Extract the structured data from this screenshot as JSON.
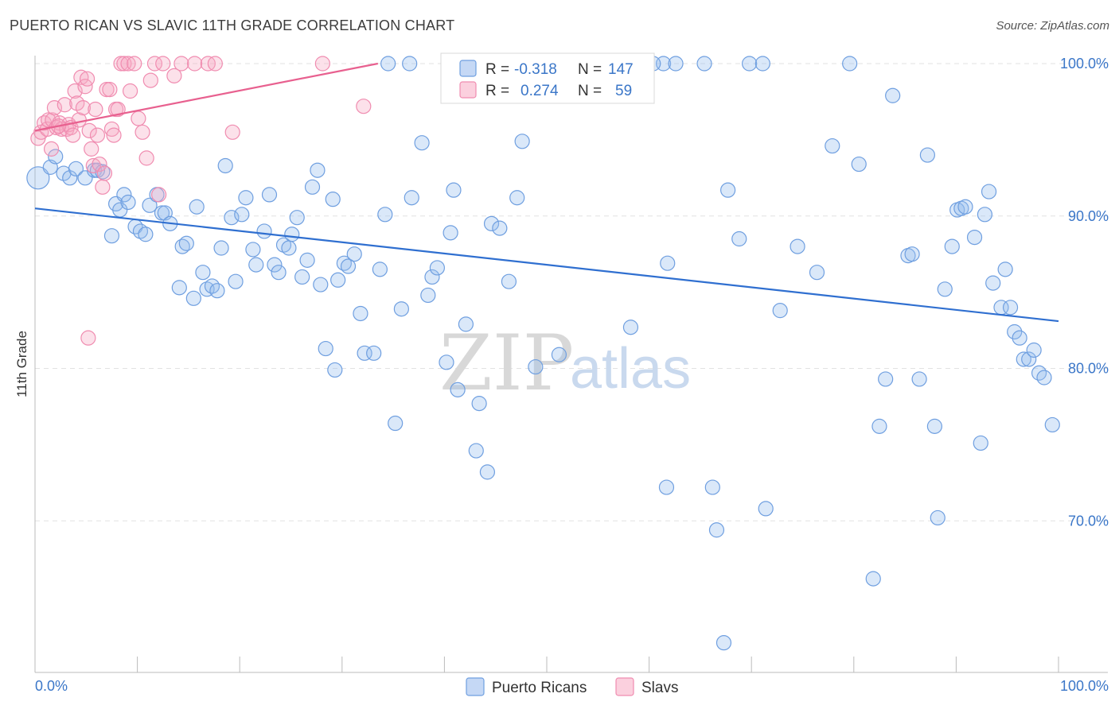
{
  "title": "PUERTO RICAN VS SLAVIC 11TH GRADE CORRELATION CHART",
  "source": "Source: ZipAtlas.com",
  "watermark": {
    "zip": "ZIP",
    "atlas": "atlas"
  },
  "legend": {
    "rows": [
      {
        "r_label": "R =",
        "r_value": "-0.318",
        "n_label": "N =",
        "n_value": "147",
        "color": "#6f9fe0"
      },
      {
        "r_label": "R =",
        "r_value": "0.274",
        "n_label": "N =",
        "n_value": "59",
        "color": "#f08cb0"
      }
    ]
  },
  "bottom_legend": [
    {
      "label": "Puerto Ricans",
      "color": "#6f9fe0"
    },
    {
      "label": "Slavs",
      "color": "#f08cb0"
    }
  ],
  "chart_data": {
    "type": "scatter",
    "title": "PUERTO RICAN VS SLAVIC 11TH GRADE CORRELATION CHART",
    "xlabel": "",
    "ylabel": "11th Grade",
    "xlim": [
      0,
      100
    ],
    "ylim": [
      60,
      100
    ],
    "x_tick_labels": [
      "0.0%",
      "100.0%"
    ],
    "y_tick_labels": [
      "100.0%",
      "90.0%",
      "80.0%",
      "70.0%"
    ],
    "y_ticks": [
      100,
      90,
      80,
      70
    ],
    "grid": true,
    "legend_position": "top-center",
    "series": [
      {
        "name": "Puerto Ricans",
        "color": "#6f9fe0",
        "trend": {
          "x": [
            0,
            100
          ],
          "y": [
            90.5,
            83.1
          ]
        },
        "points": [
          [
            0.3,
            92.5
          ],
          [
            1.5,
            93.2
          ],
          [
            2.0,
            93.9
          ],
          [
            2.8,
            92.8
          ],
          [
            3.4,
            92.5
          ],
          [
            4.0,
            93.1
          ],
          [
            4.9,
            92.5
          ],
          [
            5.8,
            93.0
          ],
          [
            6.1,
            93.0
          ],
          [
            6.6,
            92.9
          ],
          [
            7.5,
            88.7
          ],
          [
            7.9,
            90.8
          ],
          [
            8.3,
            90.4
          ],
          [
            8.7,
            91.4
          ],
          [
            9.1,
            90.9
          ],
          [
            9.8,
            89.3
          ],
          [
            10.3,
            89.0
          ],
          [
            10.8,
            88.8
          ],
          [
            11.2,
            90.7
          ],
          [
            11.9,
            91.4
          ],
          [
            12.4,
            90.2
          ],
          [
            12.7,
            90.2
          ],
          [
            13.2,
            89.5
          ],
          [
            14.1,
            85.3
          ],
          [
            14.4,
            88.0
          ],
          [
            14.8,
            88.2
          ],
          [
            15.5,
            84.6
          ],
          [
            15.8,
            90.6
          ],
          [
            16.4,
            86.3
          ],
          [
            16.8,
            85.2
          ],
          [
            17.3,
            85.4
          ],
          [
            17.8,
            85.1
          ],
          [
            18.2,
            87.9
          ],
          [
            18.6,
            93.3
          ],
          [
            19.2,
            89.9
          ],
          [
            19.6,
            85.7
          ],
          [
            20.2,
            90.1
          ],
          [
            20.6,
            91.2
          ],
          [
            21.3,
            87.8
          ],
          [
            21.6,
            86.8
          ],
          [
            22.4,
            89.0
          ],
          [
            22.9,
            91.4
          ],
          [
            23.4,
            86.8
          ],
          [
            23.8,
            86.3
          ],
          [
            24.3,
            88.1
          ],
          [
            24.8,
            87.9
          ],
          [
            25.1,
            88.8
          ],
          [
            25.6,
            89.9
          ],
          [
            26.1,
            86.0
          ],
          [
            26.6,
            87.1
          ],
          [
            27.1,
            91.9
          ],
          [
            27.6,
            93.0
          ],
          [
            27.9,
            85.5
          ],
          [
            28.4,
            81.3
          ],
          [
            29.1,
            91.1
          ],
          [
            29.3,
            79.9
          ],
          [
            29.6,
            85.8
          ],
          [
            30.2,
            86.9
          ],
          [
            30.6,
            86.7
          ],
          [
            31.2,
            87.5
          ],
          [
            31.8,
            83.6
          ],
          [
            32.2,
            81.0
          ],
          [
            33.1,
            81.0
          ],
          [
            33.7,
            86.5
          ],
          [
            34.2,
            90.1
          ],
          [
            34.5,
            100.0
          ],
          [
            35.2,
            76.4
          ],
          [
            35.8,
            83.9
          ],
          [
            36.8,
            91.2
          ],
          [
            37.8,
            94.8
          ],
          [
            38.4,
            84.8
          ],
          [
            38.8,
            86.0
          ],
          [
            39.3,
            86.6
          ],
          [
            40.2,
            80.4
          ],
          [
            40.6,
            88.9
          ],
          [
            40.9,
            91.7
          ],
          [
            41.3,
            78.6
          ],
          [
            42.1,
            82.9
          ],
          [
            43.1,
            74.6
          ],
          [
            43.4,
            77.7
          ],
          [
            44.2,
            73.2
          ],
          [
            44.6,
            89.5
          ],
          [
            45.4,
            89.2
          ],
          [
            46.3,
            85.7
          ],
          [
            47.1,
            91.2
          ],
          [
            47.6,
            94.9
          ],
          [
            48.9,
            80.1
          ],
          [
            51.2,
            80.9
          ],
          [
            58.2,
            82.7
          ],
          [
            58.7,
            100.0
          ],
          [
            61.4,
            100.0
          ],
          [
            62.6,
            100.0
          ],
          [
            65.4,
            100.0
          ],
          [
            61.7,
            72.2
          ],
          [
            61.8,
            86.9
          ],
          [
            66.2,
            72.2
          ],
          [
            66.6,
            69.4
          ],
          [
            67.7,
            91.7
          ],
          [
            68.8,
            88.5
          ],
          [
            69.8,
            100.0
          ],
          [
            71.1,
            100.0
          ],
          [
            71.4,
            70.8
          ],
          [
            72.8,
            83.8
          ],
          [
            74.5,
            88.0
          ],
          [
            76.4,
            86.3
          ],
          [
            77.9,
            94.6
          ],
          [
            80.5,
            93.4
          ],
          [
            81.9,
            66.2
          ],
          [
            82.5,
            76.2
          ],
          [
            83.1,
            79.3
          ],
          [
            83.8,
            97.9
          ],
          [
            85.3,
            87.4
          ],
          [
            85.7,
            87.5
          ],
          [
            86.4,
            79.3
          ],
          [
            87.2,
            94.0
          ],
          [
            87.9,
            76.2
          ],
          [
            88.2,
            70.2
          ],
          [
            88.9,
            85.2
          ],
          [
            89.6,
            88.0
          ],
          [
            90.1,
            90.4
          ],
          [
            90.5,
            90.5
          ],
          [
            90.9,
            90.6
          ],
          [
            91.8,
            88.6
          ],
          [
            92.4,
            75.1
          ],
          [
            92.8,
            90.1
          ],
          [
            93.2,
            91.6
          ],
          [
            93.6,
            85.6
          ],
          [
            94.4,
            84.0
          ],
          [
            94.8,
            86.5
          ],
          [
            95.3,
            84.0
          ],
          [
            95.7,
            82.4
          ],
          [
            96.2,
            82.0
          ],
          [
            96.6,
            80.6
          ],
          [
            97.1,
            80.6
          ],
          [
            97.6,
            81.2
          ],
          [
            98.1,
            79.7
          ],
          [
            98.6,
            79.4
          ],
          [
            99.4,
            76.3
          ],
          [
            67.3,
            62.0
          ],
          [
            36.6,
            100.0
          ],
          [
            56.2,
            100.0
          ],
          [
            60.4,
            100.0
          ],
          [
            79.6,
            100.0
          ],
          [
            47.0,
            100.0
          ],
          [
            51.1,
            100.0
          ],
          [
            55.4,
            100.0
          ],
          [
            53.4,
            100.0
          ]
        ]
      },
      {
        "name": "Slavs",
        "color": "#f08cb0",
        "trend": {
          "x": [
            0,
            33.5
          ],
          "y": [
            95.6,
            100.0
          ]
        },
        "points": [
          [
            0.3,
            95.1
          ],
          [
            0.6,
            95.5
          ],
          [
            0.9,
            96.1
          ],
          [
            1.2,
            95.7
          ],
          [
            1.3,
            96.3
          ],
          [
            1.7,
            96.3
          ],
          [
            1.9,
            97.1
          ],
          [
            2.1,
            95.8
          ],
          [
            2.4,
            96.1
          ],
          [
            2.6,
            95.7
          ],
          [
            2.9,
            97.3
          ],
          [
            3.1,
            95.7
          ],
          [
            3.3,
            96.0
          ],
          [
            3.5,
            95.8
          ],
          [
            3.7,
            95.3
          ],
          [
            3.9,
            98.2
          ],
          [
            4.1,
            97.4
          ],
          [
            4.3,
            96.3
          ],
          [
            4.5,
            99.1
          ],
          [
            4.7,
            97.1
          ],
          [
            4.9,
            98.5
          ],
          [
            5.1,
            99.0
          ],
          [
            5.3,
            95.6
          ],
          [
            5.5,
            94.4
          ],
          [
            5.7,
            93.3
          ],
          [
            5.9,
            97.0
          ],
          [
            6.1,
            95.3
          ],
          [
            6.3,
            93.4
          ],
          [
            6.6,
            91.9
          ],
          [
            6.8,
            92.8
          ],
          [
            7.0,
            98.3
          ],
          [
            7.3,
            98.3
          ],
          [
            7.5,
            95.7
          ],
          [
            7.7,
            95.3
          ],
          [
            7.9,
            97.0
          ],
          [
            8.1,
            97.0
          ],
          [
            8.4,
            100.0
          ],
          [
            8.7,
            100.0
          ],
          [
            9.1,
            100.0
          ],
          [
            9.3,
            98.2
          ],
          [
            9.7,
            100.0
          ],
          [
            10.1,
            96.4
          ],
          [
            10.5,
            95.5
          ],
          [
            10.9,
            93.8
          ],
          [
            11.3,
            98.9
          ],
          [
            11.7,
            100.0
          ],
          [
            12.1,
            91.4
          ],
          [
            12.5,
            100.0
          ],
          [
            13.6,
            99.2
          ],
          [
            14.3,
            100.0
          ],
          [
            15.6,
            100.0
          ],
          [
            16.9,
            100.0
          ],
          [
            17.6,
            100.0
          ],
          [
            19.3,
            95.5
          ],
          [
            28.1,
            100.0
          ],
          [
            32.1,
            97.2
          ],
          [
            5.2,
            82.0
          ],
          [
            1.6,
            94.4
          ],
          [
            2.3,
            95.9
          ]
        ]
      }
    ]
  }
}
